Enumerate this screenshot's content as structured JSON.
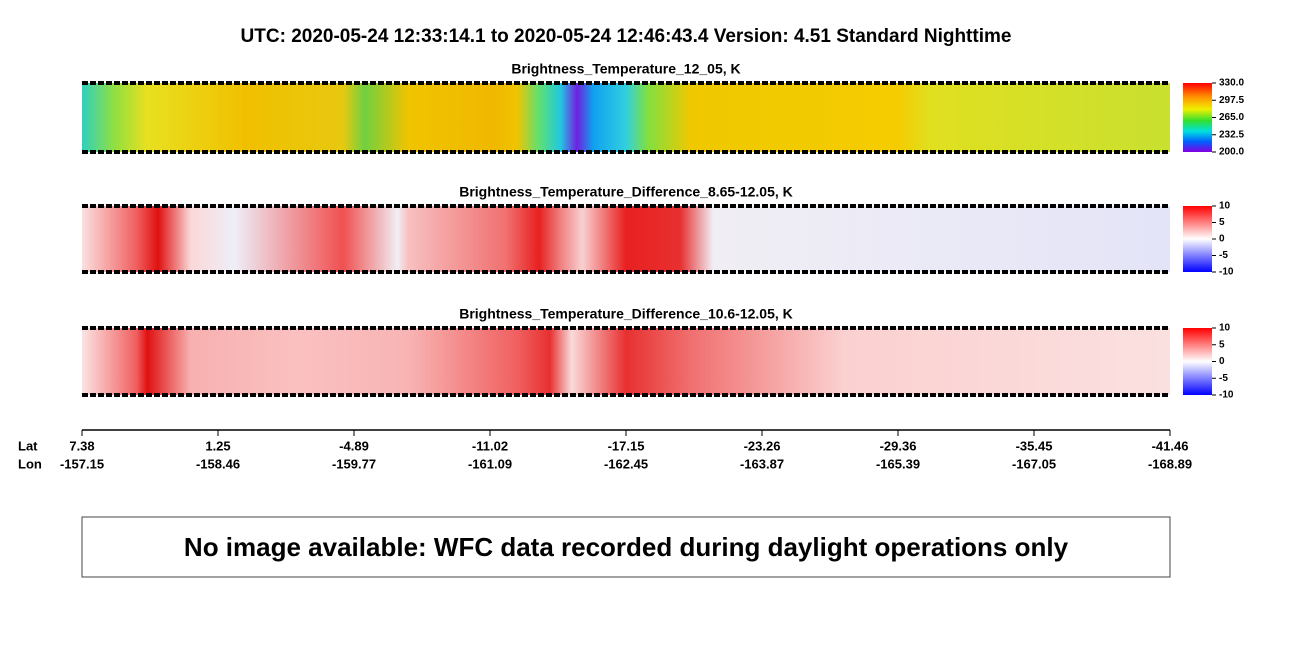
{
  "header": {
    "title": "UTC:  2020-05-24   12:33:14.1  to  2020-05-24   12:46:43.4    Version: 4.51  Standard Nighttime"
  },
  "panels": [
    {
      "title": "Brightness_Temperature_12_05, K",
      "colorbar_ticks": [
        "330.0",
        "297.5",
        "265.0",
        "232.5",
        "200.0"
      ]
    },
    {
      "title": "Brightness_Temperature_Difference_8.65-12.05, K",
      "colorbar_ticks": [
        "10",
        "5",
        "0",
        "-5",
        "-10"
      ]
    },
    {
      "title": "Brightness_Temperature_Difference_10.6-12.05, K",
      "colorbar_ticks": [
        "10",
        "5",
        "0",
        "-5",
        "-10"
      ]
    }
  ],
  "axis": {
    "lat_label": "Lat",
    "lon_label": "Lon",
    "lat": [
      "7.38",
      "1.25",
      "-4.89",
      "-11.02",
      "-17.15",
      "-23.26",
      "-29.36",
      "-35.45",
      "-41.46"
    ],
    "lon": [
      "-157.15",
      "-158.46",
      "-159.77",
      "-161.09",
      "-162.45",
      "-163.87",
      "-165.39",
      "-167.05",
      "-168.89"
    ]
  },
  "notice": "No image available: WFC data recorded during daylight operations only"
}
